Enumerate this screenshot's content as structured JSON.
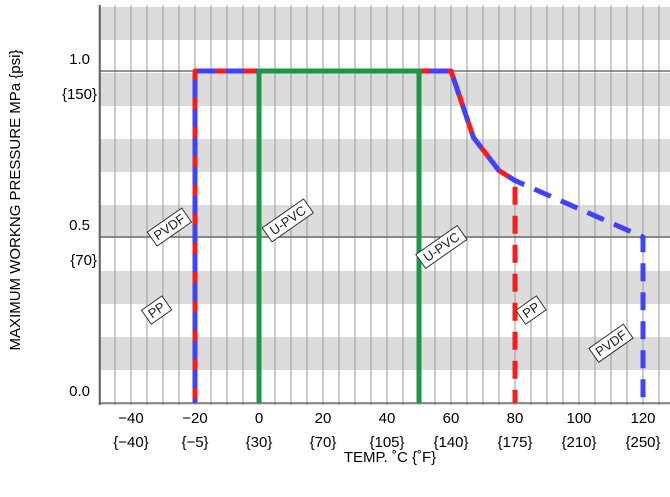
{
  "chart_data": {
    "type": "line",
    "title": "",
    "xlabel": "TEMP. ˚C {˚F}",
    "ylabel": "MAXIMUM WORKNG PRESSURE   MPa {psi}",
    "xlim": [
      -50,
      125
    ],
    "ylim": [
      0,
      1.2
    ],
    "grid": true,
    "x_ticks": [
      {
        "value": -40,
        "label": "−40",
        "sub": "{−40}"
      },
      {
        "value": -20,
        "label": "−20",
        "sub": "{−5}"
      },
      {
        "value": 0,
        "label": "0",
        "sub": "{30}"
      },
      {
        "value": 20,
        "label": "20",
        "sub": "{70}"
      },
      {
        "value": 40,
        "label": "40",
        "sub": "{105}"
      },
      {
        "value": 60,
        "label": "60",
        "sub": "{140}"
      },
      {
        "value": 80,
        "label": "80",
        "sub": "{175}"
      },
      {
        "value": 100,
        "label": "100",
        "sub": "{210}"
      },
      {
        "value": 120,
        "label": "120",
        "sub": "{250}"
      }
    ],
    "y_ticks": [
      {
        "value": 0.0,
        "label": "0.0",
        "sub": ""
      },
      {
        "value": 0.5,
        "label": "0.5",
        "sub": "{70}"
      },
      {
        "value": 1.0,
        "label": "1.0",
        "sub": "{150}"
      }
    ],
    "series": [
      {
        "name": "PP",
        "color": "#ff1a1a",
        "style": "dashed",
        "points": [
          [
            -20,
            0
          ],
          [
            -20,
            1.0
          ],
          [
            60,
            1.0
          ],
          [
            67,
            0.8
          ],
          [
            75,
            0.7
          ],
          [
            80,
            0.67
          ],
          [
            80,
            0
          ]
        ],
        "labels": [
          {
            "text": "PP",
            "x": -32,
            "y": 0.28
          },
          {
            "text": "PP",
            "x": 85,
            "y": 0.28
          }
        ]
      },
      {
        "name": "PVDF",
        "color": "#4040ff",
        "style": "dashed",
        "points": [
          [
            -20,
            0
          ],
          [
            -20,
            1.0
          ],
          [
            60,
            1.0
          ],
          [
            67,
            0.8
          ],
          [
            75,
            0.7
          ],
          [
            80,
            0.67
          ],
          [
            120,
            0.5
          ],
          [
            120,
            0
          ]
        ],
        "labels": [
          {
            "text": "PVDF",
            "x": -28,
            "y": 0.53
          },
          {
            "text": "PVDF",
            "x": 110,
            "y": 0.18
          }
        ]
      },
      {
        "name": "U-PVC",
        "color": "#1a9944",
        "style": "solid",
        "points": [
          [
            0,
            0
          ],
          [
            0,
            1.0
          ],
          [
            50,
            1.0
          ],
          [
            50,
            0
          ]
        ],
        "labels": [
          {
            "text": "U-PVC",
            "x": 9,
            "y": 0.55
          },
          {
            "text": "U-PVC",
            "x": 57,
            "y": 0.47
          }
        ]
      }
    ]
  }
}
